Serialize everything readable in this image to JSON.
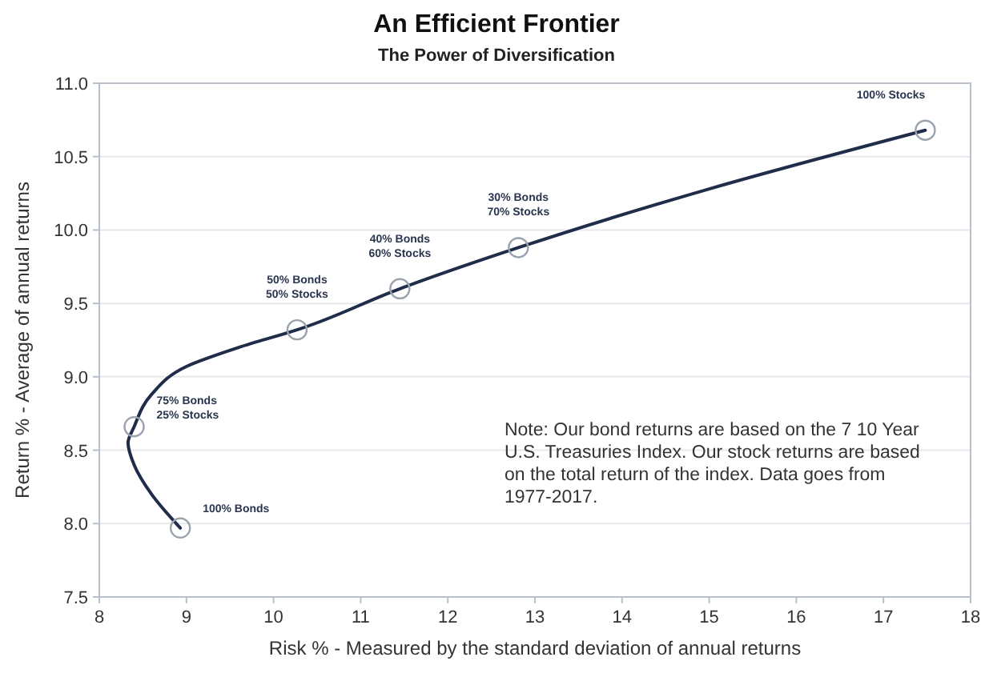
{
  "chart_data": {
    "type": "line",
    "title": "An Efficient Frontier",
    "subtitle": "The Power of Diversification",
    "xlabel": "Risk % - Measured by the standard deviation of annual returns",
    "ylabel": "Return % - Average of annual returns",
    "xlim": [
      8,
      18
    ],
    "xticks": [
      8,
      9,
      10,
      11,
      12,
      13,
      14,
      15,
      16,
      17,
      18
    ],
    "ylim": [
      7.5,
      11
    ],
    "yticks": [
      7.5,
      {
        "value": 8,
        "label": "8.0"
      },
      8.5,
      {
        "value": 9,
        "label": "9.0"
      },
      9.5,
      {
        "value": 10,
        "label": "10.0"
      },
      10.5,
      {
        "value": 11,
        "label": "11.0"
      }
    ],
    "grid": "y",
    "series": [
      {
        "color": "#1f2d4a",
        "line_style": "solid",
        "marker": "none",
        "x": [
          8.93,
          8.6,
          8.4,
          8.33,
          8.4,
          8.6,
          9,
          9.6,
          10.27,
          11.45,
          12.81,
          15,
          17.48
        ],
        "values": [
          7.97,
          8.2,
          8.4,
          8.55,
          8.66,
          8.88,
          9.07,
          9.2,
          9.32,
          9.6,
          9.88,
          10.28,
          10.68
        ]
      },
      {
        "type": "scatter",
        "color": "#9aa3ad",
        "marker": "circle",
        "x": [
          8.93,
          8.4,
          10.27,
          11.45,
          12.81,
          17.48
        ],
        "values": [
          7.97,
          8.66,
          9.32,
          9.6,
          9.88,
          10.68
        ]
      }
    ],
    "annotations": [
      {
        "text": "100% Bonds",
        "x": 8.93,
        "y": 7.97
      },
      {
        "text": "75% Bonds\n25% Stocks",
        "x": 8.4,
        "y": 8.66
      },
      {
        "text": "50% Bonds\n50% Stocks",
        "x": 10.27,
        "y": 9.32
      },
      {
        "text": "40% Bonds\n60% Stocks",
        "x": 11.45,
        "y": 9.6
      },
      {
        "text": "30% Bonds\n70% Stocks",
        "x": 12.81,
        "y": 9.88
      },
      {
        "text": "100% Stocks",
        "x": 17.48,
        "y": 10.68
      },
      "Note:  Our bond returns are based on the 7 10 Year U.S. Treasuries Index.  Our stock returns are based on the total return of the index.  Data goes from 1977-2017."
    ]
  }
}
